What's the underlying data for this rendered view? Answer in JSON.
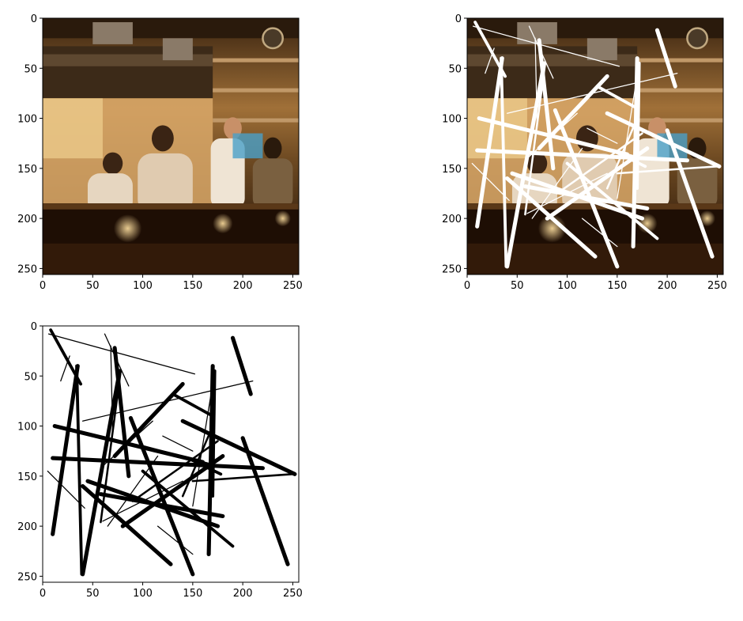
{
  "figure": {
    "panels": [
      {
        "id": "original",
        "kind": "photo",
        "description_icon": "kitchen-photo-icon"
      },
      {
        "id": "masked",
        "kind": "photo-with-mask",
        "description_icon": "masked-photo-icon"
      },
      {
        "id": "mask",
        "kind": "mask",
        "description_icon": "mask-icon"
      }
    ],
    "axes": {
      "xlim": [
        0,
        256
      ],
      "ylim": [
        256,
        0
      ],
      "xticks": [
        "0",
        "50",
        "100",
        "150",
        "200",
        "250"
      ],
      "yticks": [
        "0",
        "50",
        "100",
        "150",
        "200",
        "250"
      ],
      "tick_values": [
        0,
        50,
        100,
        150,
        200,
        250
      ]
    },
    "mask_color_on_photo": "#ffffff",
    "mask_color_on_blank": "#000000",
    "strokes": [
      [
        8,
        4,
        38,
        58,
        3
      ],
      [
        6,
        8,
        152,
        48,
        1
      ],
      [
        27,
        30,
        18,
        55,
        1
      ],
      [
        35,
        40,
        10,
        208,
        4
      ],
      [
        34,
        40,
        39,
        248,
        3
      ],
      [
        62,
        8,
        86,
        60,
        1
      ],
      [
        72,
        22,
        86,
        150,
        4
      ],
      [
        68,
        20,
        70,
        108,
        1
      ],
      [
        77,
        45,
        40,
        248,
        4
      ],
      [
        78,
        45,
        58,
        196,
        2
      ],
      [
        190,
        12,
        208,
        68,
        4
      ],
      [
        170,
        40,
        166,
        228,
        4
      ],
      [
        172,
        45,
        170,
        170,
        3
      ],
      [
        168,
        70,
        150,
        180,
        1
      ],
      [
        210,
        55,
        40,
        95,
        1
      ],
      [
        12,
        100,
        160,
        136,
        4
      ],
      [
        140,
        58,
        72,
        130,
        4
      ],
      [
        130,
        68,
        170,
        90,
        3
      ],
      [
        140,
        95,
        252,
        148,
        4
      ],
      [
        10,
        132,
        220,
        142,
        4
      ],
      [
        110,
        95,
        60,
        140,
        1
      ],
      [
        140,
        170,
        170,
        100,
        2
      ],
      [
        145,
        132,
        178,
        148,
        3
      ],
      [
        200,
        112,
        245,
        238,
        4
      ],
      [
        180,
        130,
        80,
        200,
        4
      ],
      [
        45,
        155,
        175,
        200,
        4
      ],
      [
        40,
        160,
        128,
        238,
        4
      ],
      [
        58,
        168,
        180,
        190,
        4
      ],
      [
        60,
        195,
        140,
        155,
        1
      ],
      [
        100,
        145,
        190,
        220,
        3
      ],
      [
        88,
        92,
        150,
        248,
        4
      ],
      [
        5,
        145,
        42,
        182,
        1
      ],
      [
        115,
        200,
        150,
        228,
        1
      ],
      [
        120,
        110,
        150,
        125,
        1
      ],
      [
        90,
        175,
        175,
        115,
        2
      ],
      [
        150,
        155,
        250,
        148,
        2
      ],
      [
        100,
        120,
        175,
        140,
        2
      ],
      [
        65,
        200,
        115,
        130,
        1
      ]
    ]
  }
}
